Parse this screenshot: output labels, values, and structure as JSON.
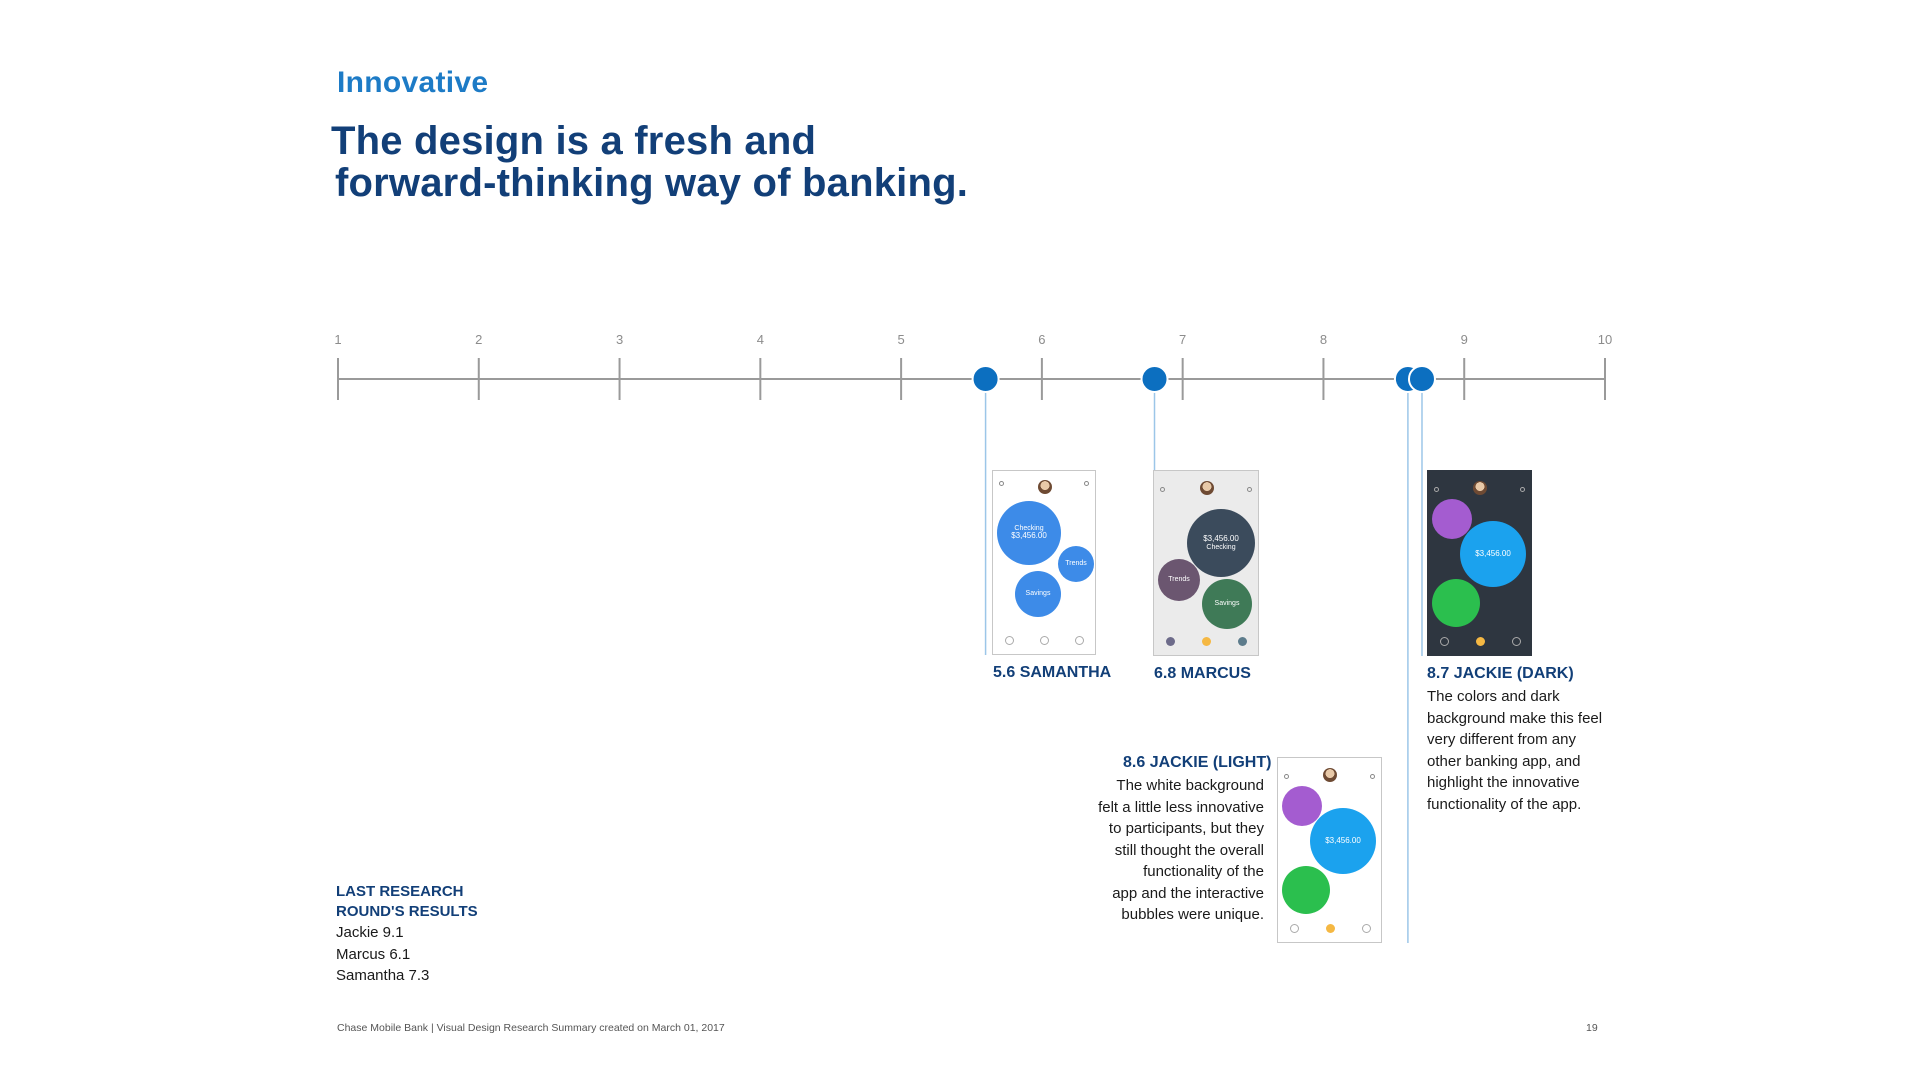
{
  "header": {
    "section_label": "Innovative",
    "headline_line1": "The design is a fresh and",
    "headline_line2": "forward-thinking way of banking."
  },
  "chart_data": {
    "type": "scatter",
    "title": "",
    "xlabel": "",
    "ylabel": "",
    "xlim": [
      1,
      10
    ],
    "ticks": [
      1,
      2,
      3,
      4,
      5,
      6,
      7,
      8,
      9,
      10
    ],
    "grid": false,
    "series": [
      {
        "name": "SAMANTHA",
        "x": 5.6
      },
      {
        "name": "MARCUS",
        "x": 6.8
      },
      {
        "name": "JACKIE (LIGHT)",
        "x": 8.6
      },
      {
        "name": "JACKIE (DARK)",
        "x": 8.7
      }
    ],
    "colors": {
      "axis": "#9a9a9a",
      "marker": "#0c6fc0",
      "connector": "#9cc6e8"
    }
  },
  "cards": {
    "samantha": {
      "title": "5.6 SAMANTHA",
      "amount": "$3,456.00",
      "checking": "Checking",
      "trends": "Trends",
      "savings": "Savings"
    },
    "marcus": {
      "title": "6.8 MARCUS",
      "amount": "$3,456.00",
      "checking": "Checking",
      "trends": "Trends",
      "savings": "Savings"
    },
    "jackie_light": {
      "title": "8.6 JACKIE (LIGHT)",
      "lines": [
        "The white background",
        "felt a little less innovative",
        "to participants, but they",
        "still thought the overall",
        "functionality of the",
        "app and the interactive",
        "bubbles were unique."
      ],
      "amount": "$3,456.00"
    },
    "jackie_dark": {
      "title": "8.7 JACKIE (DARK)",
      "lines": [
        "The colors and dark",
        "background make this feel",
        "very different from any",
        "other banking app, and",
        "highlight the innovative",
        "functionality of the app."
      ],
      "amount": "$3,456.00"
    }
  },
  "research": {
    "heading_line1": "LAST RESEARCH",
    "heading_line2": "ROUND'S RESULTS",
    "results": [
      "Jackie 9.1",
      "Marcus 6.1",
      "Samantha 7.3"
    ]
  },
  "footer": {
    "text": "Chase Mobile Bank | Visual Design Research Summary created on March 01, 2017",
    "page_number": "19"
  }
}
